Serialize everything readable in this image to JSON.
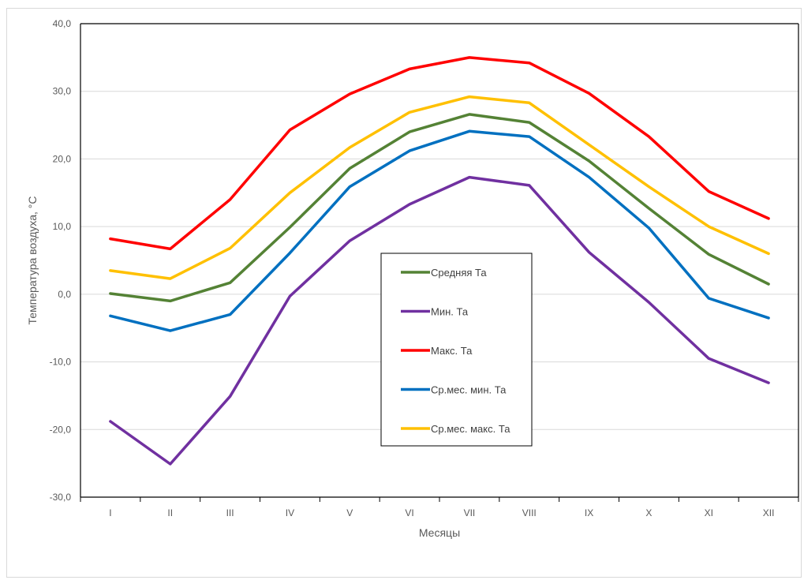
{
  "chart_data": {
    "type": "line",
    "title": "",
    "xlabel": "Месяцы",
    "ylabel": "Температура воздуха, °С",
    "ylim": [
      -30,
      40
    ],
    "ytick_step": 10,
    "ytick_labels": [
      "-30,0",
      "-20,0",
      "-10,0",
      "0,0",
      "10,0",
      "20,0",
      "30,0",
      "40,0"
    ],
    "grid": true,
    "legend_position": "center",
    "categories": [
      "I",
      "II",
      "III",
      "IV",
      "V",
      "VI",
      "VII",
      "VIII",
      "IX",
      "X",
      "XI",
      "XII"
    ],
    "series": [
      {
        "name": "Средняя Та",
        "color": "#548235",
        "values": [
          0.1,
          -1.0,
          1.7,
          9.9,
          18.6,
          24.0,
          26.6,
          25.4,
          19.7,
          12.7,
          5.9,
          1.5
        ]
      },
      {
        "name": "Мин. Та",
        "color": "#7030a0",
        "values": [
          -18.8,
          -25.1,
          -15.1,
          -0.3,
          7.9,
          13.3,
          17.3,
          16.1,
          6.2,
          -1.2,
          -9.5,
          -13.1
        ]
      },
      {
        "name": "Макс. Та",
        "color": "#ff0000",
        "values": [
          8.2,
          6.7,
          14.0,
          24.3,
          29.6,
          33.3,
          35.0,
          34.2,
          29.7,
          23.3,
          15.2,
          11.2
        ]
      },
      {
        "name": "Ср.мес. мин. Та",
        "color": "#0070c0",
        "values": [
          -3.2,
          -5.4,
          -3.0,
          6.1,
          15.9,
          21.2,
          24.1,
          23.3,
          17.3,
          9.8,
          -0.6,
          -3.5
        ]
      },
      {
        "name": "Ср.мес. макс. Та",
        "color": "#ffc000",
        "values": [
          3.5,
          2.3,
          6.8,
          15.0,
          21.7,
          26.9,
          29.2,
          28.3,
          22.1,
          15.9,
          10.0,
          6.0
        ]
      }
    ]
  }
}
